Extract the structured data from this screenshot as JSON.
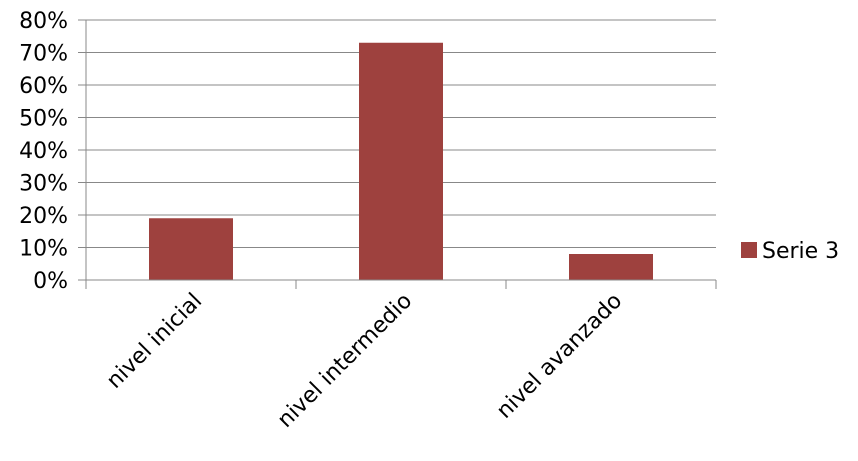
{
  "chart_data": {
    "type": "bar",
    "categories": [
      "nivel inicial",
      "nivel intermedio",
      "nivel avanzado"
    ],
    "series": [
      {
        "name": "Serie 3",
        "values": [
          19,
          73,
          8
        ],
        "color": "#9e413e"
      }
    ],
    "yticks": [
      "0%",
      "10%",
      "20%",
      "30%",
      "40%",
      "50%",
      "60%",
      "70%",
      "80%"
    ],
    "ylim": [
      0,
      80
    ],
    "value_format": "percent",
    "grid": true,
    "legend": "right"
  }
}
